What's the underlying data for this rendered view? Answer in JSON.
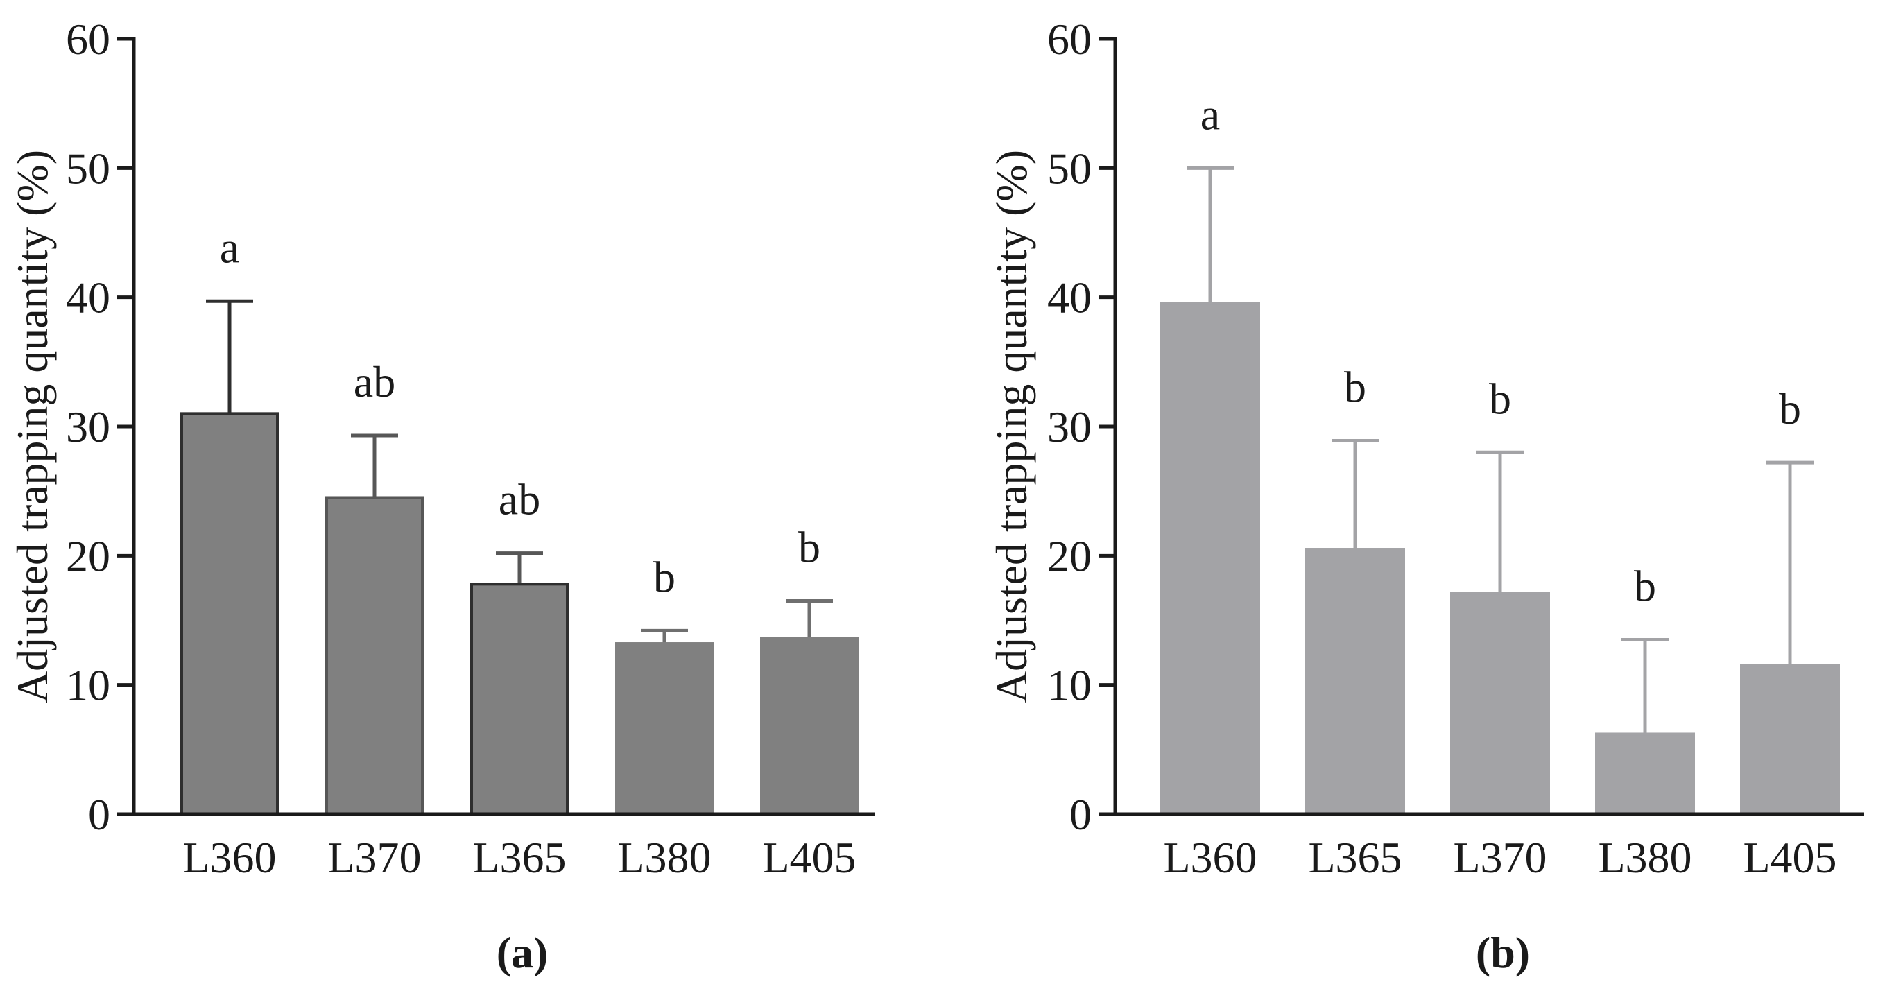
{
  "chart_data": [
    {
      "type": "bar",
      "panel_label": "(a)",
      "ylabel": "Adjusted trapping quantity (%)",
      "xlabel": "",
      "ylim": [
        0,
        60
      ],
      "yticks": [
        0,
        10,
        20,
        30,
        40,
        50,
        60
      ],
      "grid": false,
      "categories": [
        "L360",
        "L370",
        "L365",
        "L380",
        "L405"
      ],
      "values": [
        31,
        24.5,
        17.8,
        13.2,
        13.6
      ],
      "errors": [
        8.7,
        4.8,
        2.4,
        1.0,
        2.9
      ],
      "significance": [
        "a",
        "ab",
        "ab",
        "b",
        "b"
      ],
      "colors": {
        "bar_fill": "#808080",
        "bar_outline": [
          "#2e2e2e",
          "#575757",
          "#2e2e2e",
          "#808080",
          "#808080"
        ],
        "error_bar": [
          "#2e2e2e",
          "#575757",
          "#575757",
          "#6f6f6f",
          "#6f6f6f"
        ],
        "axis": "#1a1a1a"
      }
    },
    {
      "type": "bar",
      "panel_label": "(b)",
      "ylabel": "Adjusted trapping quantity (%)",
      "xlabel": "",
      "ylim": [
        0,
        60
      ],
      "yticks": [
        0,
        10,
        20,
        30,
        40,
        50,
        60
      ],
      "grid": false,
      "categories": [
        "L360",
        "L365",
        "L370",
        "L380",
        "L405"
      ],
      "values": [
        39.5,
        20.5,
        17.1,
        6.2,
        11.5
      ],
      "errors": [
        10.5,
        8.4,
        10.9,
        7.3,
        15.7
      ],
      "significance": [
        "a",
        "b",
        "b",
        "b",
        "b"
      ],
      "colors": {
        "bar_fill": "#a3a3a6",
        "bar_outline": [
          "#a3a3a6",
          "#a3a3a6",
          "#a3a3a6",
          "#a3a3a6",
          "#a3a3a6"
        ],
        "error_bar": [
          "#a3a3a6",
          "#a3a3a6",
          "#a3a3a6",
          "#a3a3a6",
          "#a3a3a6"
        ],
        "axis": "#1a1a1a"
      }
    }
  ]
}
